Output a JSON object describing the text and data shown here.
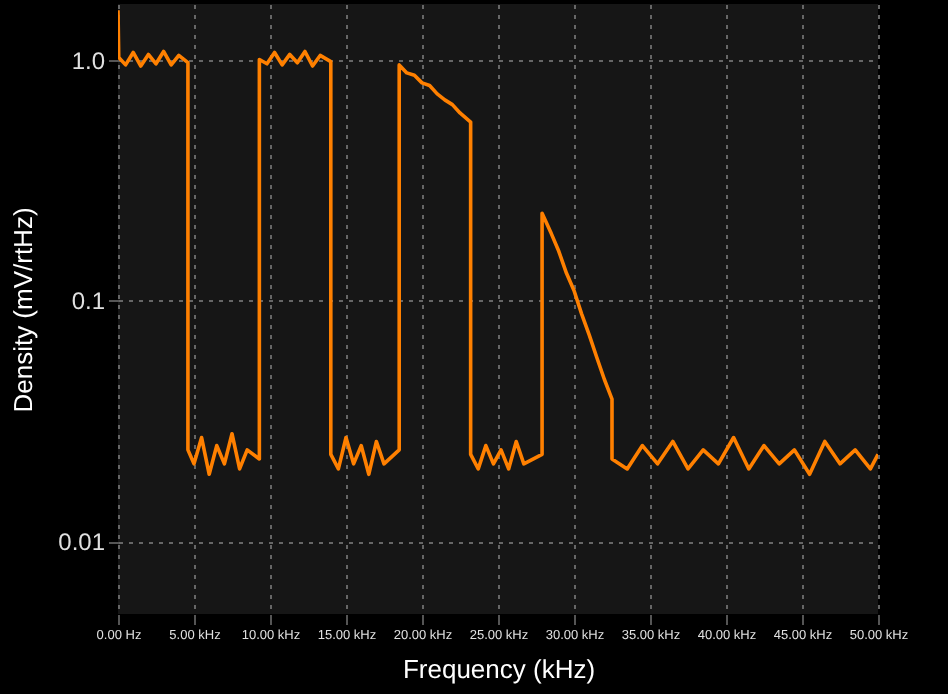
{
  "chart_data": {
    "type": "line",
    "xlabel": "Frequency (kHz)",
    "ylabel": "Density (mV/rtHz)",
    "log": true,
    "grid": true,
    "legend": false,
    "marker": "none",
    "line_style": "solid",
    "xlim": [
      0,
      50
    ],
    "ylim": [
      0.005,
      1.7
    ],
    "xticks": [
      {
        "value": 0,
        "label": "0.00 Hz"
      },
      {
        "value": 5,
        "label": "5.00 kHz"
      },
      {
        "value": 10,
        "label": "10.00 kHz"
      },
      {
        "value": 15,
        "label": "15.00 kHz"
      },
      {
        "value": 20,
        "label": "20.00 kHz"
      },
      {
        "value": 25,
        "label": "25.00 kHz"
      },
      {
        "value": 30,
        "label": "30.00 kHz"
      },
      {
        "value": 35,
        "label": "35.00 kHz"
      },
      {
        "value": 40,
        "label": "40.00 kHz"
      },
      {
        "value": 45,
        "label": "45.00 kHz"
      },
      {
        "value": 50,
        "label": "50.00 kHz"
      }
    ],
    "yticks": [
      {
        "value": 1,
        "label": "1.0"
      },
      0.1,
      0.01
    ],
    "series": [
      {
        "color": "#ff8000",
        "x": [
          0,
          0.05,
          0.5,
          1.0,
          1.5,
          2.0,
          2.5,
          3.0,
          3.5,
          4.0,
          4.6,
          4.6,
          5.0,
          5.5,
          6.0,
          6.5,
          7.0,
          7.5,
          8.0,
          8.5,
          9.3,
          9.3,
          9.8,
          10.3,
          10.8,
          11.3,
          11.8,
          12.3,
          12.8,
          13.3,
          14.0,
          14.0,
          14.5,
          15.0,
          15.5,
          16.0,
          16.5,
          17.0,
          17.5,
          18.5,
          18.5,
          19.0,
          19.5,
          20.0,
          20.5,
          21.0,
          21.5,
          22.0,
          22.5,
          23.2,
          23.2,
          23.7,
          24.2,
          24.7,
          25.2,
          25.7,
          26.2,
          26.7,
          27.9,
          27.9,
          28.5,
          29.0,
          29.5,
          30.0,
          30.5,
          31.0,
          31.5,
          32.0,
          32.5,
          32.5,
          33.5,
          34.5,
          35.5,
          36.5,
          37.5,
          38.5,
          39.5,
          40.5,
          41.5,
          42.5,
          43.5,
          44.5,
          45.5,
          46.5,
          47.5,
          48.5,
          49.5,
          50
        ],
        "values": [
          1.6,
          1.02,
          0.95,
          1.07,
          0.94,
          1.05,
          0.96,
          1.08,
          0.95,
          1.04,
          0.97,
          0.024,
          0.021,
          0.027,
          0.019,
          0.025,
          0.021,
          0.028,
          0.02,
          0.024,
          0.022,
          1.0,
          0.96,
          1.07,
          0.95,
          1.05,
          0.97,
          1.08,
          0.94,
          1.04,
          0.98,
          0.023,
          0.02,
          0.027,
          0.021,
          0.025,
          0.019,
          0.026,
          0.021,
          0.024,
          0.95,
          0.88,
          0.86,
          0.8,
          0.78,
          0.72,
          0.68,
          0.65,
          0.6,
          0.55,
          0.023,
          0.02,
          0.025,
          0.021,
          0.024,
          0.02,
          0.026,
          0.021,
          0.023,
          0.23,
          0.19,
          0.16,
          0.13,
          0.11,
          0.088,
          0.072,
          0.058,
          0.047,
          0.039,
          0.022,
          0.02,
          0.025,
          0.021,
          0.026,
          0.02,
          0.024,
          0.021,
          0.027,
          0.02,
          0.025,
          0.021,
          0.024,
          0.019,
          0.026,
          0.021,
          0.024,
          0.02,
          0.023
        ]
      }
    ]
  }
}
